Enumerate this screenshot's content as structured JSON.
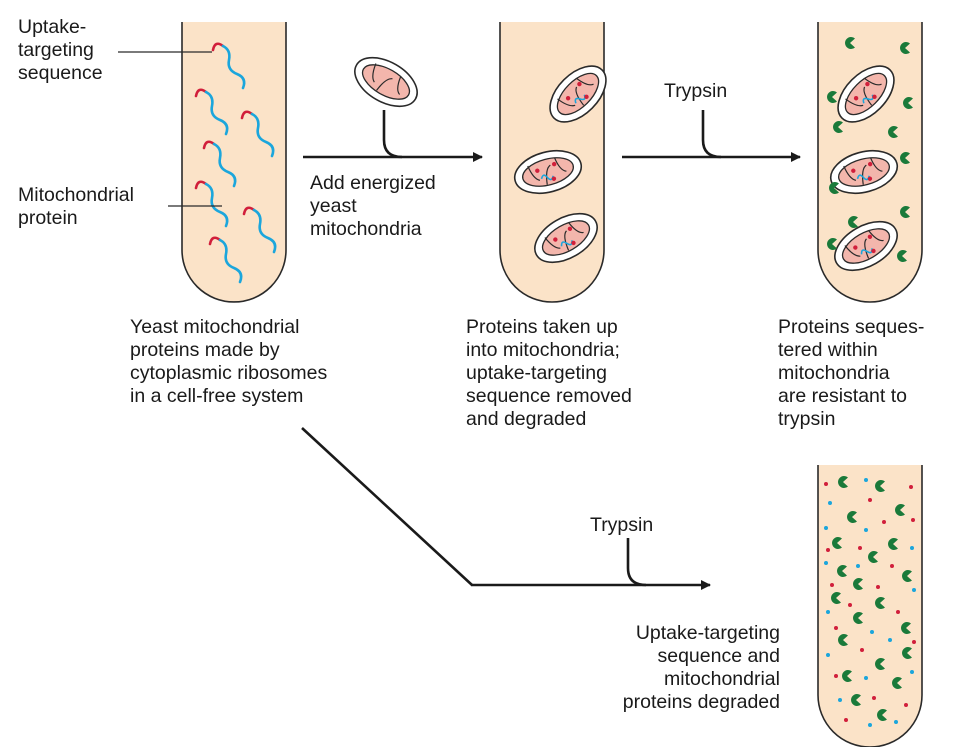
{
  "colors": {
    "tube_fill": "#fbe3c8",
    "tube_stroke": "#2a2a2a",
    "targeting_sequence": "#d11f3b",
    "mitochondrial_protein": "#1ba6dc",
    "mitochondrion_fill": "#f3b6ac",
    "trypsin": "#1a7a3a",
    "arrow": "#1a1a1a"
  },
  "labels": {
    "uptake_targeting_sequence": "Uptake-\ntargeting\nsequence",
    "mitochondrial_protein": "Mitochondrial\nprotein",
    "add_mitochondria": "Add energized\nyeast\nmitochondria",
    "trypsin_top": "Trypsin",
    "trypsin_bottom": "Trypsin",
    "tube1_caption": "Yeast mitochondrial\nproteins made by\ncytoplasmic ribosomes\nin a cell-free system",
    "tube2_caption": "Proteins taken up\ninto mitochondria;\nuptake-targeting\nsequence removed\nand degraded",
    "tube3_caption": "Proteins seques-\ntered within\nmitochondria\nare resistant to\ntrypsin",
    "tube4_caption": "Uptake-targeting\nsequence and\nmitochondrial\nproteins degraded"
  }
}
